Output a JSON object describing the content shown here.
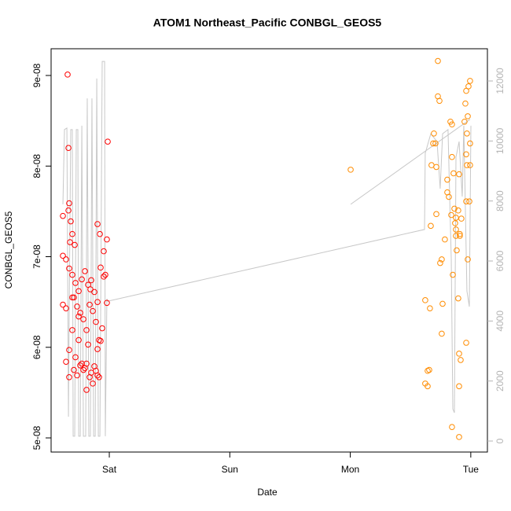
{
  "chart_data": {
    "type": "scatter",
    "title": "ATOM1 Northeast_Pacific CONBGL_GEOS5",
    "xlabel": "Date",
    "ylabel": "CONBGL_GEOS5",
    "xlim": [
      -0.483,
      3.138
    ],
    "xticks": [
      {
        "value": 0,
        "label": "Sat"
      },
      {
        "value": 1,
        "label": "Sun"
      },
      {
        "value": 2,
        "label": "Mon"
      },
      {
        "value": 3,
        "label": "Tue"
      }
    ],
    "ylim": [
      4.844e-08,
      9.295e-08
    ],
    "yticks": [
      {
        "value": 5e-08,
        "label": "5e-08"
      },
      {
        "value": 6e-08,
        "label": "6e-08"
      },
      {
        "value": 7e-08,
        "label": "7e-08"
      },
      {
        "value": 8e-08,
        "label": "8e-08"
      },
      {
        "value": 9e-08,
        "label": "9e-08"
      }
    ],
    "y2lim": [
      -367,
      13074
    ],
    "y2ticks": [
      0,
      2000,
      4000,
      6000,
      8000,
      10000,
      12000
    ],
    "series": [
      {
        "type": "line",
        "axis": "y2",
        "color": "#c8c8c8",
        "x": [
          -0.385,
          -0.372,
          -0.352,
          -0.339,
          -0.333,
          -0.32,
          -0.307,
          -0.3,
          -0.287,
          -0.274,
          -0.261,
          -0.254,
          -0.241,
          -0.228,
          -0.215,
          -0.196,
          -0.183,
          -0.17,
          -0.157,
          -0.144,
          -0.13,
          -0.117,
          -0.104,
          -0.091,
          -0.078,
          -0.059,
          -0.039,
          -0.033,
          -0.02,
          -0.013,
          2.616,
          2.622,
          2.668,
          2.72,
          2.746,
          2.766,
          2.811,
          2.838,
          2.851,
          2.864,
          2.877,
          2.903,
          2.929,
          2.942,
          2.968,
          2.988,
          3.001,
          null,
          2.003,
          2.994
        ],
        "values": [
          7890,
          10380,
          10430,
          810,
          4220,
          10380,
          10380,
          160,
          160,
          10380,
          10380,
          160,
          160,
          10510,
          160,
          160,
          11420,
          160,
          160,
          11420,
          160,
          160,
          12080,
          160,
          160,
          12650,
          12650,
          160,
          4740,
          4660,
          7050,
          9590,
          10240,
          9980,
          8410,
          10240,
          10380,
          6050,
          1070,
          940,
          9460,
          9980,
          8150,
          10510,
          5000,
          4480,
          10510,
          null,
          7890,
          10720
        ]
      },
      {
        "type": "scatter",
        "color": "#ff0000",
        "x": [
          -0.346,
          -0.013,
          -0.339,
          -0.333,
          -0.385,
          -0.339,
          -0.32,
          -0.307,
          -0.287,
          -0.326,
          -0.098,
          -0.078,
          -0.385,
          -0.359,
          -0.333,
          -0.307,
          -0.281,
          -0.254,
          -0.228,
          -0.202,
          -0.176,
          -0.15,
          -0.124,
          -0.098,
          -0.072,
          -0.046,
          -0.02,
          -0.385,
          -0.359,
          -0.294,
          -0.267,
          -0.241,
          -0.215,
          -0.189,
          -0.163,
          -0.137,
          -0.111,
          -0.085,
          -0.059,
          -0.033,
          -0.333,
          -0.307,
          -0.281,
          -0.254,
          -0.228,
          -0.202,
          -0.176,
          -0.15,
          -0.124,
          -0.098,
          -0.072,
          -0.359,
          -0.333,
          -0.294,
          -0.267,
          -0.241,
          -0.215,
          -0.189,
          -0.163,
          -0.137,
          -0.111,
          -0.085,
          -0.046,
          -0.02,
          -0.098,
          -0.189,
          -0.307,
          -0.254,
          -0.157
        ],
        "values": [
          9.01e-08,
          8.27e-08,
          8.2e-08,
          7.59e-08,
          7.45e-08,
          7.51e-08,
          7.39e-08,
          7.25e-08,
          7.13e-08,
          7.16e-08,
          7.36e-08,
          7.25e-08,
          7.01e-08,
          6.97e-08,
          6.87e-08,
          6.8e-08,
          6.71e-08,
          6.62e-08,
          6.75e-08,
          6.84e-08,
          6.69e-08,
          6.74e-08,
          6.61e-08,
          6.5e-08,
          6.88e-08,
          6.78e-08,
          6.49e-08,
          6.47e-08,
          6.43e-08,
          6.55e-08,
          6.45e-08,
          6.38e-08,
          6.31e-08,
          6.19e-08,
          6.47e-08,
          6.4e-08,
          6.28e-08,
          6.08e-08,
          6.21e-08,
          6.8e-08,
          5.97e-08,
          6.19e-08,
          5.89e-08,
          6.08e-08,
          5.82e-08,
          5.77e-08,
          6.03e-08,
          5.72e-08,
          5.79e-08,
          5.98e-08,
          6.07e-08,
          5.84e-08,
          5.67e-08,
          5.75e-08,
          5.69e-08,
          5.8e-08,
          5.75e-08,
          5.53e-08,
          5.67e-08,
          5.6e-08,
          5.74e-08,
          5.67e-08,
          7.06e-08,
          7.19e-08,
          5.69e-08,
          5.82e-08,
          6.55e-08,
          6.34e-08,
          6.64e-08
        ]
      },
      {
        "type": "scatter",
        "color": "#ff8c00",
        "x": [
          2.003,
          2.727,
          2.727,
          2.74,
          2.981,
          2.994,
          2.962,
          2.955,
          2.975,
          2.948,
          2.831,
          2.844,
          2.688,
          2.694,
          2.707,
          2.968,
          2.994,
          2.962,
          2.674,
          2.714,
          2.844,
          2.857,
          2.903,
          2.805,
          2.805,
          2.818,
          2.864,
          2.896,
          2.877,
          2.877,
          2.909,
          2.922,
          2.714,
          2.838,
          2.87,
          2.668,
          2.746,
          2.759,
          2.785,
          2.851,
          2.883,
          2.962,
          2.988,
          2.994,
          2.968,
          2.896,
          2.622,
          2.766,
          2.661,
          2.759,
          2.962,
          2.903,
          2.916,
          2.642,
          2.655,
          2.622,
          2.642,
          2.844,
          2.903,
          2.903,
          2.975,
          2.909,
          2.877
        ],
        "values": [
          7.96e-08,
          9.16e-08,
          8.77e-08,
          8.72e-08,
          8.88e-08,
          8.94e-08,
          8.83e-08,
          8.69e-08,
          8.55e-08,
          8.49e-08,
          8.49e-08,
          8.46e-08,
          8.25e-08,
          8.36e-08,
          8.25e-08,
          8.36e-08,
          8.25e-08,
          8.13e-08,
          8.01e-08,
          7.99e-08,
          8.1e-08,
          7.92e-08,
          7.91e-08,
          7.85e-08,
          7.71e-08,
          7.66e-08,
          7.53e-08,
          7.51e-08,
          7.43e-08,
          7.3e-08,
          7.23e-08,
          7.42e-08,
          7.47e-08,
          7.46e-08,
          7.37e-08,
          7.34e-08,
          6.93e-08,
          6.97e-08,
          7.19e-08,
          6.8e-08,
          7.07e-08,
          7.61e-08,
          7.61e-08,
          8.01e-08,
          8.01e-08,
          6.54e-08,
          6.52e-08,
          6.48e-08,
          6.43e-08,
          6.15e-08,
          6.05e-08,
          5.93e-08,
          5.86e-08,
          5.74e-08,
          5.75e-08,
          5.6e-08,
          5.57e-08,
          5.12e-08,
          5.01e-08,
          5.57e-08,
          6.97e-08,
          7.25e-08,
          7.23e-08
        ]
      }
    ]
  }
}
